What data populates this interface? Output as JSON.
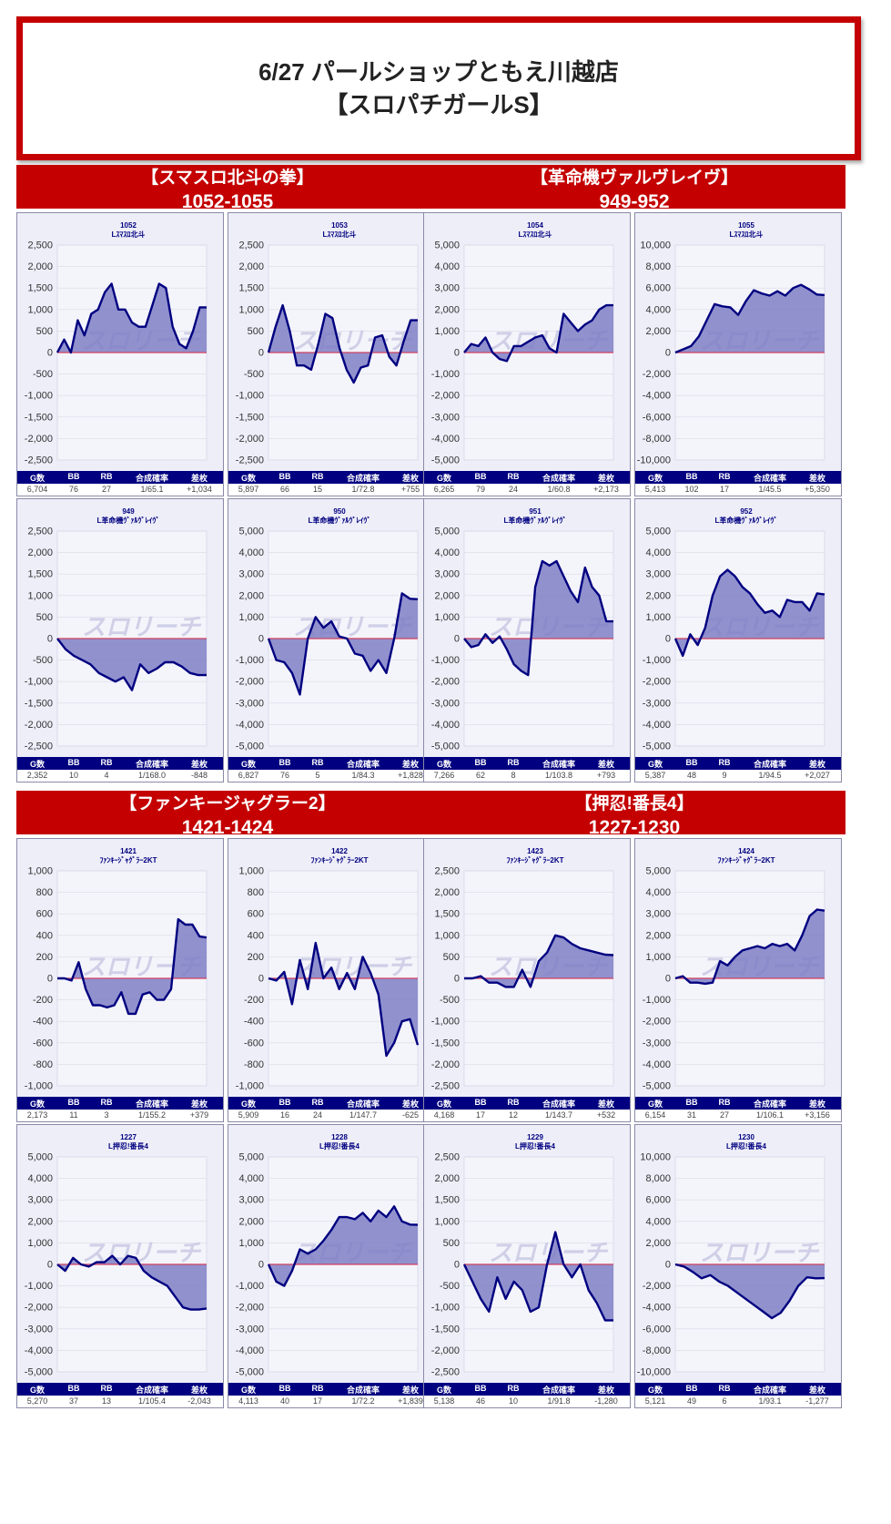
{
  "title": {
    "line1": "6/27 パールショップともえ川越店",
    "line2": "【スロパチガールS】"
  },
  "stat_headers": [
    "G数",
    "BB",
    "RB",
    "合成確率",
    "差枚"
  ],
  "watermark": "スロリーチ",
  "colors": {
    "header": "#c40000",
    "line": "#000080",
    "fill": "#7f7fc5",
    "zero": "#d04060",
    "panel": "#eeeef9"
  },
  "sections": [
    {
      "name": "【スマスロ北斗の拳】",
      "range": "1052-1055"
    },
    {
      "name": "【革命機ヴァルヴレイヴ】",
      "range": "949-952"
    },
    {
      "name": "【ファンキージャグラー2】",
      "range": "1421-1424"
    },
    {
      "name": "【押忍!番長4】",
      "range": "1227-1230"
    }
  ],
  "chart_data": [
    {
      "type": "area",
      "number": "1052",
      "machine": "Lｽﾏｽﾛ北斗",
      "ylim": [
        -2500,
        2500
      ],
      "ystep": 500,
      "values": [
        0,
        300,
        0,
        750,
        400,
        900,
        1000,
        1400,
        1600,
        1000,
        1000,
        700,
        600,
        600,
        1100,
        1600,
        1500,
        600,
        200,
        100,
        500,
        1050,
        1050
      ],
      "stats": [
        "6,704",
        "76",
        "27",
        "1/65.1",
        "+1,034"
      ]
    },
    {
      "type": "area",
      "number": "1053",
      "machine": "Lｽﾏｽﾛ北斗",
      "ylim": [
        -2500,
        2500
      ],
      "ystep": 500,
      "values": [
        0,
        600,
        1100,
        500,
        -300,
        -300,
        -400,
        200,
        900,
        800,
        100,
        -400,
        -700,
        -350,
        -300,
        350,
        400,
        -100,
        -300,
        250,
        750,
        750
      ],
      "stats": [
        "5,897",
        "66",
        "15",
        "1/72.8",
        "+755"
      ]
    },
    {
      "type": "area",
      "number": "949",
      "machine": "L革命機ｳﾞｧﾙｳﾞﾚｲｳﾞ",
      "ylim": [
        -2500,
        2500
      ],
      "ystep": 500,
      "values": [
        0,
        -250,
        -400,
        -500,
        -600,
        -800,
        -900,
        -1000,
        -900,
        -1200,
        -600,
        -800,
        -700,
        -550,
        -550,
        -650,
        -800,
        -850,
        -850
      ],
      "stats": [
        "2,352",
        "10",
        "4",
        "1/168.0",
        "-848"
      ]
    },
    {
      "type": "area",
      "number": "950",
      "machine": "L革命機ｳﾞｧﾙｳﾞﾚｲｳﾞ",
      "ylim": [
        -5000,
        5000
      ],
      "ystep": 1000,
      "values": [
        0,
        -1000,
        -1100,
        -1600,
        -2600,
        0,
        1000,
        500,
        800,
        100,
        0,
        -700,
        -800,
        -1500,
        -1000,
        -1600,
        0,
        2100,
        1850,
        1830
      ],
      "stats": [
        "6,827",
        "76",
        "5",
        "1/84.3",
        "+1,828"
      ]
    },
    {
      "type": "area",
      "number": "1054",
      "machine": "Lｽﾏｽﾛ北斗",
      "ylim": [
        -5000,
        5000
      ],
      "ystep": 1000,
      "values": [
        0,
        400,
        300,
        700,
        0,
        -300,
        -400,
        300,
        300,
        500,
        700,
        800,
        200,
        0,
        1800,
        1400,
        1000,
        1300,
        1500,
        2000,
        2200,
        2200
      ],
      "stats": [
        "6,265",
        "79",
        "24",
        "1/60.8",
        "+2,173"
      ]
    },
    {
      "type": "area",
      "number": "1055",
      "machine": "Lｽﾏｽﾛ北斗",
      "ylim": [
        -10000,
        10000
      ],
      "ystep": 2000,
      "values": [
        0,
        300,
        600,
        1500,
        3000,
        4500,
        4300,
        4200,
        3500,
        4800,
        5800,
        5500,
        5300,
        5700,
        5300,
        6000,
        6300,
        5900,
        5400,
        5350
      ],
      "stats": [
        "5,413",
        "102",
        "17",
        "1/45.5",
        "+5,350"
      ]
    },
    {
      "type": "area",
      "number": "951",
      "machine": "L革命機ｳﾞｧﾙｳﾞﾚｲｳﾞ",
      "ylim": [
        -5000,
        5000
      ],
      "ystep": 1000,
      "values": [
        0,
        -400,
        -300,
        200,
        -200,
        100,
        -500,
        -1200,
        -1500,
        -1700,
        2400,
        3600,
        3400,
        3600,
        2900,
        2200,
        1700,
        3300,
        2400,
        2000,
        800,
        800
      ],
      "stats": [
        "7,266",
        "62",
        "8",
        "1/103.8",
        "+793"
      ]
    },
    {
      "type": "area",
      "number": "952",
      "machine": "L革命機ｳﾞｧﾙｳﾞﾚｲｳﾞ",
      "ylim": [
        -5000,
        5000
      ],
      "ystep": 1000,
      "values": [
        0,
        -800,
        200,
        -300,
        500,
        2000,
        2900,
        3200,
        2900,
        2400,
        2100,
        1600,
        1200,
        1300,
        1000,
        1800,
        1700,
        1700,
        1300,
        2100,
        2050
      ],
      "stats": [
        "5,387",
        "48",
        "9",
        "1/94.5",
        "+2,027"
      ]
    },
    {
      "type": "area",
      "number": "1421",
      "machine": "ﾌｧﾝｷｰｼﾞｬｸﾞﾗｰ2KT",
      "ylim": [
        -1000,
        1000
      ],
      "ystep": 200,
      "values": [
        0,
        0,
        -20,
        150,
        -100,
        -250,
        -250,
        -270,
        -250,
        -130,
        -330,
        -330,
        -150,
        -130,
        -200,
        -200,
        -100,
        550,
        500,
        500,
        390,
        380
      ],
      "stats": [
        "2,173",
        "11",
        "3",
        "1/155.2",
        "+379"
      ]
    },
    {
      "type": "area",
      "number": "1422",
      "machine": "ﾌｧﾝｷｰｼﾞｬｸﾞﾗｰ2KT",
      "ylim": [
        -1000,
        1000
      ],
      "ystep": 200,
      "values": [
        0,
        -20,
        60,
        -240,
        170,
        -100,
        330,
        0,
        100,
        -100,
        50,
        -100,
        200,
        50,
        -150,
        -720,
        -600,
        -400,
        -380,
        -620
      ],
      "stats": [
        "5,909",
        "16",
        "24",
        "1/147.7",
        "-625"
      ]
    },
    {
      "type": "area",
      "number": "1227",
      "machine": "L押忍!番長4",
      "ylim": [
        -5000,
        5000
      ],
      "ystep": 1000,
      "values": [
        0,
        -300,
        300,
        0,
        -100,
        100,
        100,
        400,
        0,
        400,
        300,
        -300,
        -600,
        -800,
        -1000,
        -1500,
        -2000,
        -2100,
        -2100,
        -2050
      ],
      "stats": [
        "5,270",
        "37",
        "13",
        "1/105.4",
        "-2,043"
      ]
    },
    {
      "type": "area",
      "number": "1228",
      "machine": "L押忍!番長4",
      "ylim": [
        -5000,
        5000
      ],
      "ystep": 1000,
      "values": [
        0,
        -800,
        -1000,
        -300,
        700,
        500,
        700,
        1100,
        1600,
        2200,
        2200,
        2100,
        2400,
        2000,
        2500,
        2200,
        2700,
        2000,
        1850,
        1840
      ],
      "stats": [
        "4,113",
        "40",
        "17",
        "1/72.2",
        "+1,839"
      ]
    },
    {
      "type": "area",
      "number": "1423",
      "machine": "ﾌｧﾝｷｰｼﾞｬｸﾞﾗｰ2KT",
      "ylim": [
        -2500,
        2500
      ],
      "ystep": 500,
      "values": [
        0,
        0,
        50,
        -100,
        -100,
        -200,
        -200,
        200,
        -200,
        400,
        600,
        1000,
        950,
        800,
        700,
        650,
        600,
        550,
        540
      ],
      "stats": [
        "4,168",
        "17",
        "12",
        "1/143.7",
        "+532"
      ]
    },
    {
      "type": "area",
      "number": "1424",
      "machine": "ﾌｧﾝｷｰｼﾞｬｸﾞﾗｰ2KT",
      "ylim": [
        -5000,
        5000
      ],
      "ystep": 1000,
      "values": [
        0,
        100,
        -200,
        -200,
        -250,
        -200,
        800,
        600,
        1000,
        1300,
        1400,
        1500,
        1400,
        1600,
        1500,
        1600,
        1300,
        2000,
        2900,
        3200,
        3150
      ],
      "stats": [
        "6,154",
        "31",
        "27",
        "1/106.1",
        "+3,156"
      ]
    },
    {
      "type": "area",
      "number": "1229",
      "machine": "L押忍!番長4",
      "ylim": [
        -2500,
        2500
      ],
      "ystep": 500,
      "values": [
        0,
        -400,
        -800,
        -1100,
        -300,
        -800,
        -400,
        -600,
        -1100,
        -1000,
        0,
        750,
        0,
        -300,
        0,
        -600,
        -900,
        -1300,
        -1300
      ],
      "stats": [
        "5,138",
        "46",
        "10",
        "1/91.8",
        "-1,280"
      ]
    },
    {
      "type": "area",
      "number": "1230",
      "machine": "L押忍!番長4",
      "ylim": [
        -10000,
        10000
      ],
      "ystep": 2000,
      "values": [
        0,
        -200,
        -700,
        -1300,
        -1000,
        -1600,
        -2000,
        -2600,
        -3200,
        -3800,
        -4400,
        -5000,
        -4500,
        -3400,
        -2000,
        -1200,
        -1300,
        -1280
      ],
      "stats": [
        "5,121",
        "49",
        "6",
        "1/93.1",
        "-1,277"
      ]
    }
  ]
}
